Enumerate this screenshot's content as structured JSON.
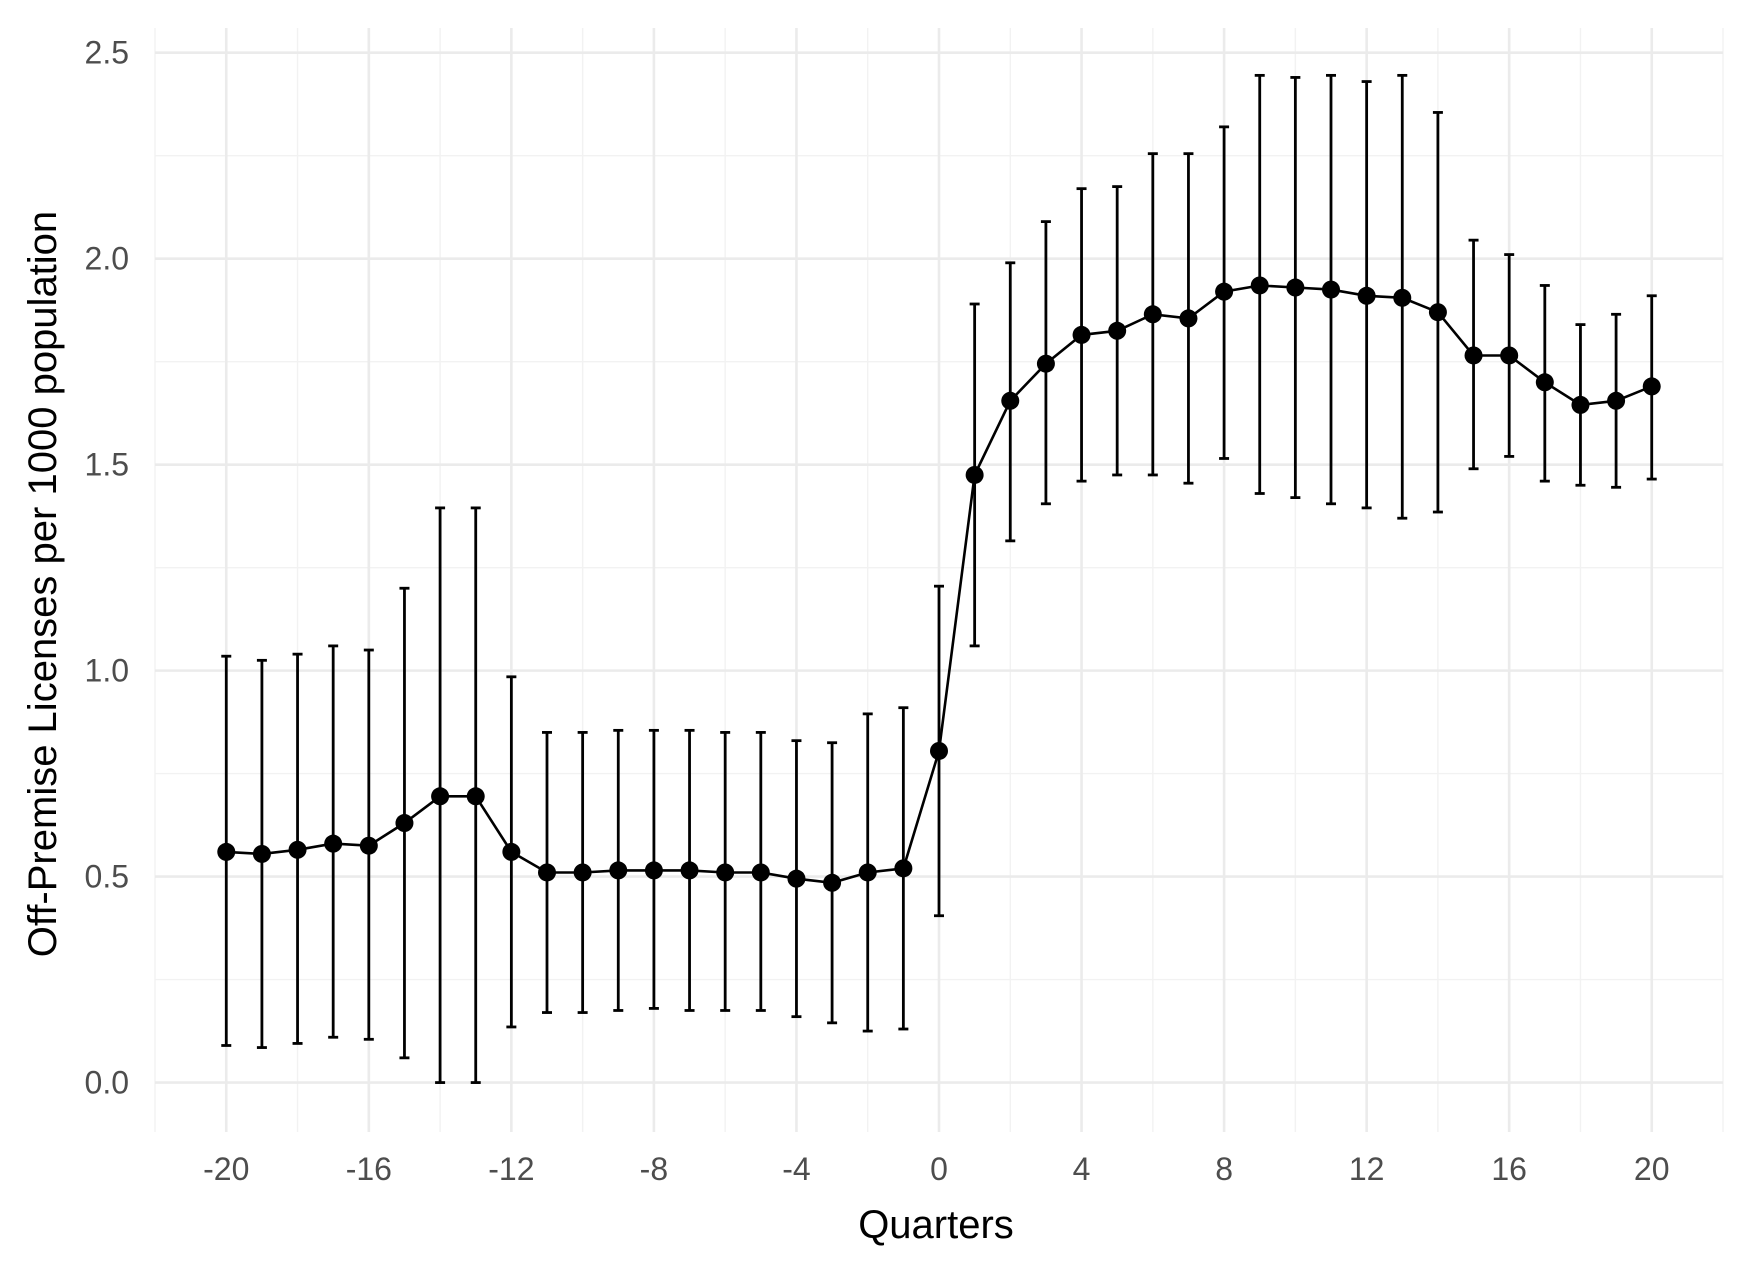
{
  "chart_data": {
    "type": "line",
    "title": "",
    "xlabel": "Quarters",
    "ylabel": "Off-Premise Licenses per 1000 population",
    "xlim": [
      -22,
      22
    ],
    "ylim": [
      -0.12,
      2.56
    ],
    "x_ticks": [
      -20,
      -16,
      -12,
      -8,
      -4,
      0,
      4,
      8,
      12,
      16,
      20
    ],
    "x_tick_labels": [
      "-20",
      "-16",
      "-12",
      "-8",
      "-4",
      "0",
      "4",
      "8",
      "12",
      "16",
      "20"
    ],
    "y_ticks": [
      0,
      0.5,
      1,
      1.5,
      2,
      2.5
    ],
    "y_tick_labels": [
      "0.0",
      "0.5",
      "1.0",
      "1.5",
      "2.0",
      "2.5"
    ],
    "grid": true,
    "legend": "none",
    "colors": {
      "series": "#000000",
      "grid_major": "#ebebeb",
      "grid_minor": "#f2f2f2",
      "tick_text": "#4d4d4d"
    },
    "x": [
      -20,
      -19,
      -18,
      -17,
      -16,
      -15,
      -14,
      -13,
      -12,
      -11,
      -10,
      -9,
      -8,
      -7,
      -6,
      -5,
      -4,
      -3,
      -2,
      -1,
      0,
      1,
      2,
      3,
      4,
      5,
      6,
      7,
      8,
      9,
      10,
      11,
      12,
      13,
      14,
      15,
      16,
      17,
      18,
      19,
      20
    ],
    "y": [
      0.56,
      0.555,
      0.565,
      0.58,
      0.575,
      0.63,
      0.695,
      0.695,
      0.56,
      0.51,
      0.51,
      0.515,
      0.515,
      0.515,
      0.51,
      0.51,
      0.495,
      0.485,
      0.51,
      0.52,
      0.805,
      1.475,
      1.655,
      1.745,
      1.815,
      1.825,
      1.865,
      1.855,
      1.92,
      1.935,
      1.93,
      1.925,
      1.91,
      1.905,
      1.87,
      1.765,
      1.765,
      1.7,
      1.645,
      1.655,
      1.69
    ],
    "lower": [
      0.09,
      0.085,
      0.095,
      0.11,
      0.105,
      0.06,
      0.0,
      0.0,
      0.135,
      0.17,
      0.17,
      0.175,
      0.18,
      0.175,
      0.175,
      0.175,
      0.16,
      0.145,
      0.125,
      0.13,
      0.405,
      1.06,
      1.315,
      1.405,
      1.46,
      1.475,
      1.475,
      1.455,
      1.515,
      1.43,
      1.42,
      1.405,
      1.395,
      1.37,
      1.385,
      1.49,
      1.52,
      1.46,
      1.45,
      1.445,
      1.465
    ],
    "upper": [
      1.035,
      1.025,
      1.04,
      1.06,
      1.05,
      1.2,
      1.395,
      1.395,
      0.985,
      0.85,
      0.85,
      0.855,
      0.855,
      0.855,
      0.85,
      0.85,
      0.83,
      0.825,
      0.895,
      0.91,
      1.205,
      1.89,
      1.99,
      2.09,
      2.17,
      2.175,
      2.255,
      2.255,
      2.32,
      2.445,
      2.44,
      2.445,
      2.43,
      2.445,
      2.355,
      2.045,
      2.01,
      1.935,
      1.84,
      1.865,
      1.91
    ]
  }
}
